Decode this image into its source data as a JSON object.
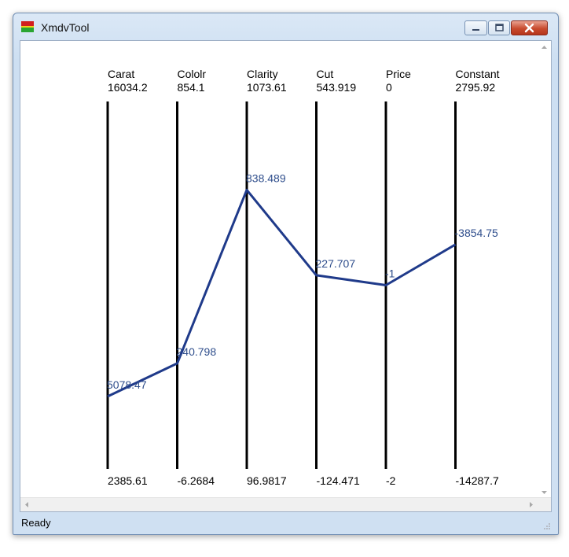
{
  "window": {
    "title": "XmdvTool"
  },
  "status": {
    "text": "Ready"
  },
  "icons": {
    "app": "xmdvtool-app-icon",
    "minimize": "minimize-icon",
    "maximize": "maximize-icon",
    "close": "close-icon",
    "scroll_up": "arrow-up-icon",
    "scroll_down": "arrow-down-icon",
    "scroll_left": "arrow-left-icon",
    "scroll_right": "arrow-right-icon"
  },
  "colors": {
    "polyline": "#1f3a8a",
    "value_label": "#2f4e8c",
    "axis": "#000000"
  },
  "chart_data": {
    "type": "line",
    "subtype": "parallel-coordinates",
    "axes": [
      {
        "name": "Carat",
        "max": "16034.2",
        "min": "2385.61",
        "value": 5078.47,
        "label": "5078.47",
        "range": [
          2385.61,
          16034.2
        ]
      },
      {
        "name": "Cololr",
        "max": "854.1",
        "min": "-6.2684",
        "value": 240.798,
        "label": "240.798",
        "range": [
          -6.2684,
          854.1
        ]
      },
      {
        "name": "Clarity",
        "max": "1073.61",
        "min": "96.9817",
        "value": 838.489,
        "label": "838.489",
        "range": [
          96.9817,
          1073.61
        ]
      },
      {
        "name": "Cut",
        "max": "543.919",
        "min": "-124.471",
        "value": 227.707,
        "label": "227.707",
        "range": [
          -124.471,
          543.919
        ]
      },
      {
        "name": "Price",
        "max": "0",
        "min": "-2",
        "value": -1,
        "label": "-1",
        "range": [
          -2,
          0
        ]
      },
      {
        "name": "Constant",
        "max": "2795.92",
        "min": "-14287.7",
        "value": -3854.75,
        "label": "-3854.75",
        "range": [
          -14287.7,
          2795.92
        ]
      }
    ]
  }
}
